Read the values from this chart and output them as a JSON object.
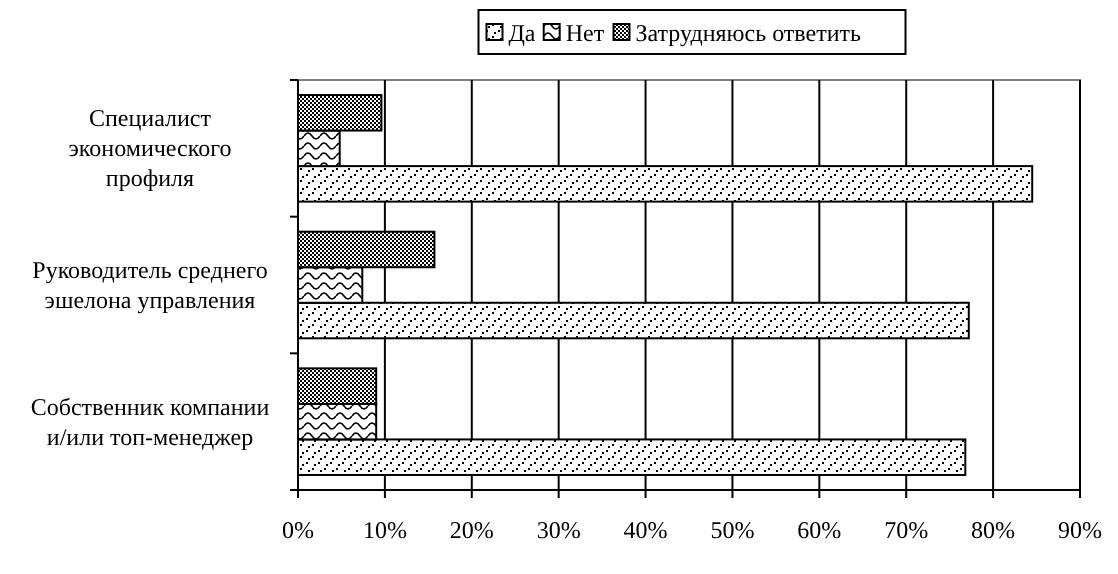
{
  "chart_data": {
    "type": "bar",
    "orientation": "horizontal",
    "categories": [
      "Специалист\nэкономического\nпрофиля",
      "Руководитель среднего\nэшелона управления",
      "Собственник компании\nи/или топ-менеджер"
    ],
    "series": [
      {
        "name": "Да",
        "color": "#000000",
        "values": [
          84.5,
          77.2,
          76.8
        ]
      },
      {
        "name": "Нет",
        "color": "#000000",
        "values": [
          4.8,
          7.4,
          9.0
        ]
      },
      {
        "name": "Затрудняюсь ответить",
        "color": "#000000",
        "values": [
          9.6,
          15.7,
          9.0
        ]
      }
    ],
    "xlim": [
      0,
      90
    ],
    "xticks": [
      {
        "value": 0,
        "label": "0%"
      },
      {
        "value": 10,
        "label": "10%"
      },
      {
        "value": 20,
        "label": "20%"
      },
      {
        "value": 30,
        "label": "30%"
      },
      {
        "value": 40,
        "label": "40%"
      },
      {
        "value": 50,
        "label": "50%"
      },
      {
        "value": 60,
        "label": "60%"
      },
      {
        "value": 70,
        "label": "70%"
      },
      {
        "value": 80,
        "label": "80%"
      },
      {
        "value": 90,
        "label": "90%"
      }
    ],
    "grid": "x",
    "legend": "top"
  }
}
